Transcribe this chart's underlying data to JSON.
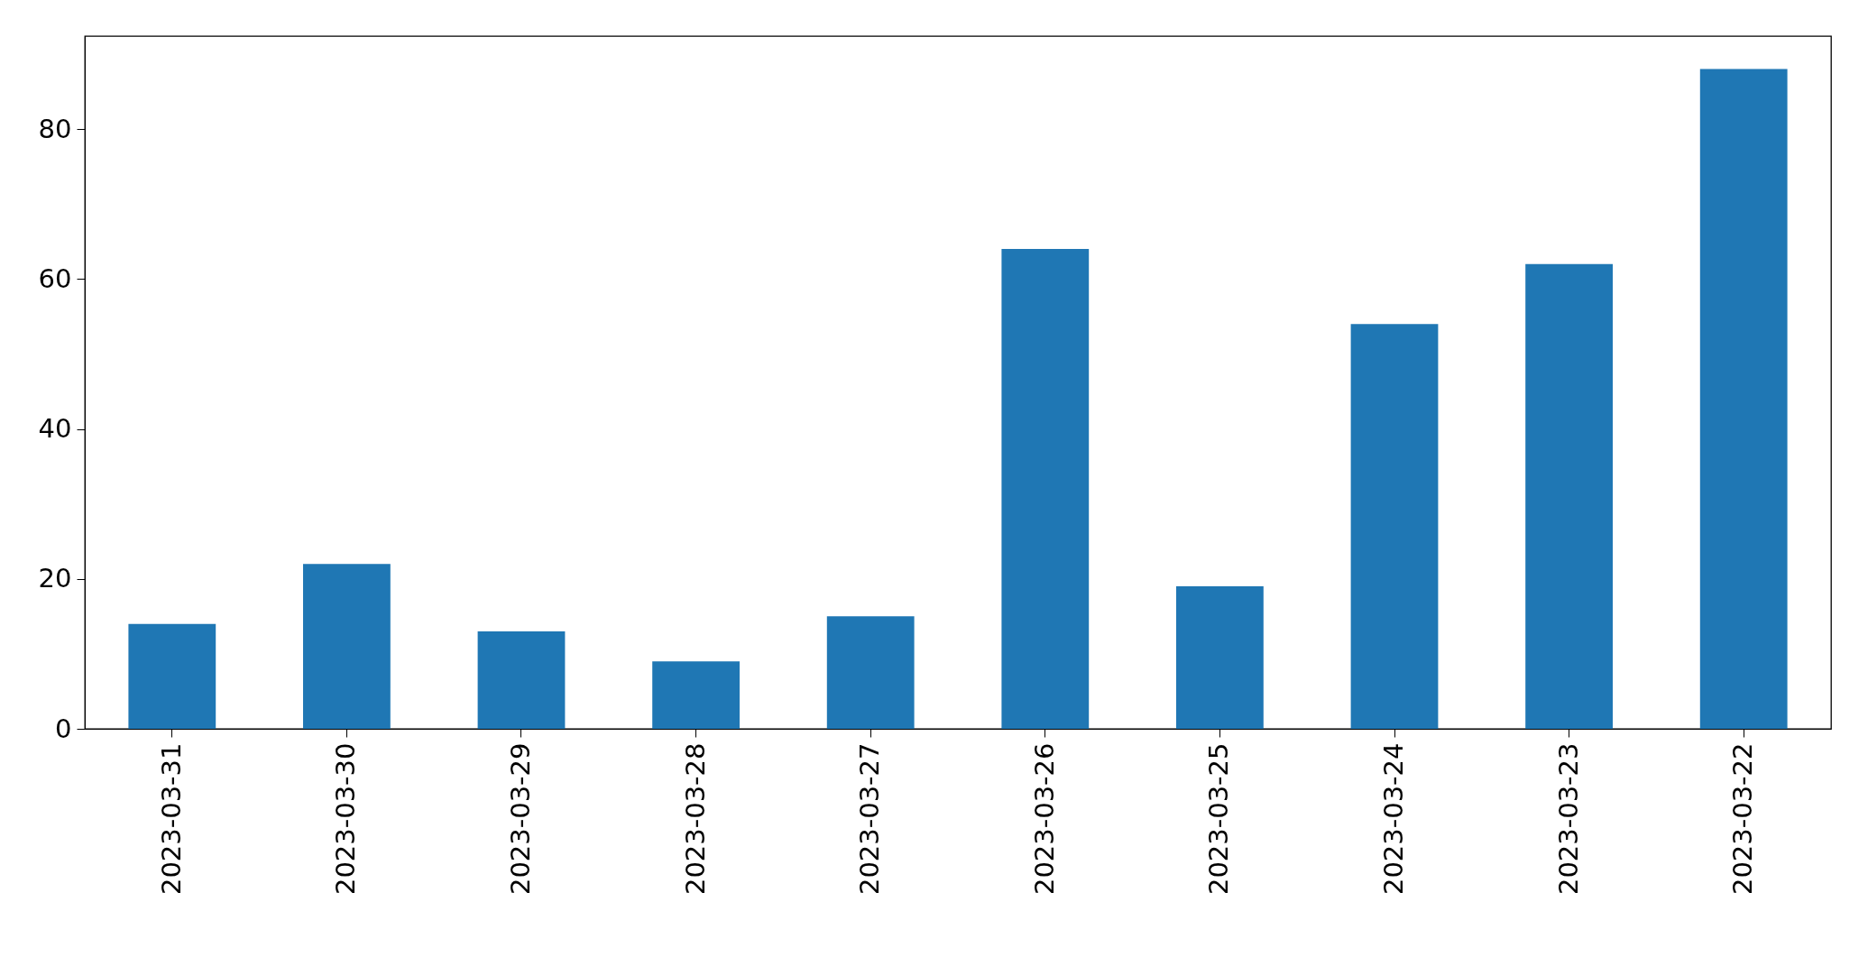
{
  "chart_data": {
    "type": "bar",
    "categories": [
      "2023-03-31",
      "2023-03-30",
      "2023-03-29",
      "2023-03-28",
      "2023-03-27",
      "2023-03-26",
      "2023-03-25",
      "2023-03-24",
      "2023-03-23",
      "2023-03-22"
    ],
    "values": [
      14,
      22,
      13,
      9,
      15,
      64,
      19,
      54,
      62,
      88
    ],
    "color": "#1f77b4",
    "ylim": [
      0,
      92.4
    ],
    "yticks": [
      0,
      20,
      40,
      60,
      80
    ]
  }
}
